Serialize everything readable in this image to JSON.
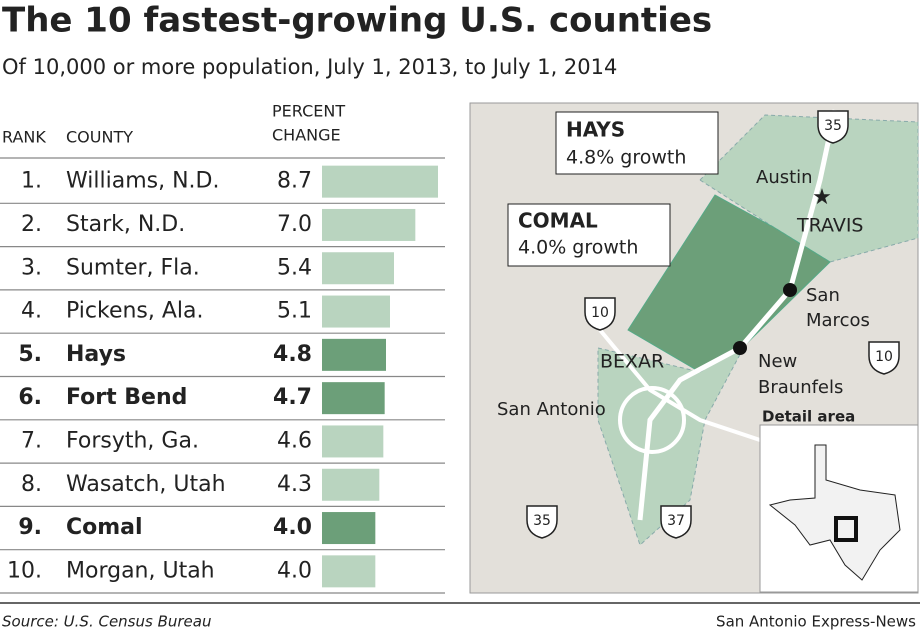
{
  "chart_data": {
    "type": "bar",
    "title": "The 10 fastest-growing U.S. counties",
    "subtitle": "Of 10,000 or more population, July 1, 2013, to July 1, 2014",
    "headers": {
      "rank": "RANK",
      "county": "COUNTY",
      "change": [
        "PERCENT",
        "CHANGE"
      ]
    },
    "ranks": [
      "1.",
      "2.",
      "3.",
      "4.",
      "5.",
      "6.",
      "7.",
      "8.",
      "9.",
      "10."
    ],
    "categories": [
      "Williams, N.D.",
      "Stark, N.D.",
      "Sumter, Fla.",
      "Pickens, Ala.",
      "Hays",
      "Fort Bend",
      "Forsyth, Ga.",
      "Wasatch, Utah",
      "Comal",
      "Morgan, Utah"
    ],
    "values": [
      8.7,
      7.0,
      5.4,
      5.1,
      4.8,
      4.7,
      4.6,
      4.3,
      4.0,
      4.0
    ],
    "value_labels": [
      "8.7",
      "7.0",
      "5.4",
      "5.1",
      "4.8",
      "4.7",
      "4.6",
      "4.3",
      "4.0",
      "4.0"
    ],
    "highlight": [
      false,
      false,
      false,
      false,
      true,
      true,
      false,
      false,
      true,
      false
    ],
    "color": "#b9d4bf",
    "highlight_color": "#6c9f79"
  },
  "map": {
    "labels": {
      "hays": "HAYS",
      "hays_growth": "4.8% growth",
      "comal": "COMAL",
      "comal_growth": "4.0% growth",
      "austin": "Austin",
      "travis": "TRAVIS",
      "san_marcos": [
        "San",
        "Marcos"
      ],
      "new_braunfels": [
        "New",
        "Braunfels"
      ],
      "bexar": "BEXAR",
      "san_antonio": "San Antonio",
      "detail": "Detail area"
    },
    "shields": [
      "35",
      "10",
      "10",
      "35",
      "37"
    ]
  },
  "footer": {
    "source": "Source: U.S. Census Bureau",
    "credit": "San Antonio Express-News"
  }
}
